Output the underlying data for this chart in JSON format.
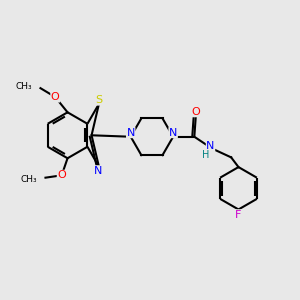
{
  "background_color": "#e8e8e8",
  "bond_color": "#000000",
  "atom_colors": {
    "S": "#cccc00",
    "N": "#0000ff",
    "O": "#ff0000",
    "F": "#cc00cc",
    "H": "#008080",
    "C": "#000000"
  },
  "figsize": [
    3.0,
    3.0
  ],
  "dpi": 100,
  "xlim": [
    0,
    10
  ],
  "ylim": [
    0,
    10
  ]
}
